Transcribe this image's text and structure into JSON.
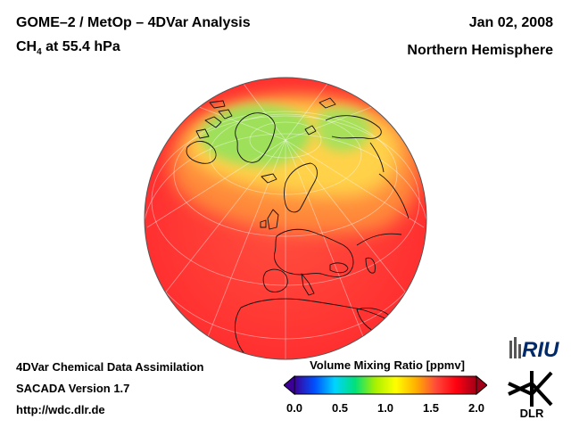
{
  "header": {
    "title": "GOME–2 / MetOp – 4DVar Analysis",
    "species_main": "CH",
    "species_sub": "4",
    "species_rest": " at 55.4 hPa",
    "date": "Jan 02, 2008",
    "region": "Northern Hemisphere"
  },
  "footer": {
    "line1": "4DVar Chemical Data Assimilation",
    "line2": "SACADA Version 1.7",
    "line3": "http://wdc.dlr.de"
  },
  "colorbar": {
    "title": "Volume Mixing Ratio [ppmv]",
    "ticks": [
      "0.0",
      "0.5",
      "1.0",
      "1.5",
      "2.0"
    ],
    "min": 0.0,
    "max": 2.0,
    "colors": [
      "#3c0096",
      "#0050ff",
      "#00d4ff",
      "#00e07a",
      "#a8f000",
      "#ffff00",
      "#ffb000",
      "#ff4a3a",
      "#ff0010",
      "#a00018"
    ]
  },
  "map": {
    "projection": "orthographic",
    "field_colors": {
      "high": "#ff4040",
      "mid": "#ff8c40",
      "low": "#ffd24a",
      "lowest": "#9ee05a"
    }
  },
  "logos": {
    "riu_text": "RIU",
    "dlr_text": "DLR"
  }
}
